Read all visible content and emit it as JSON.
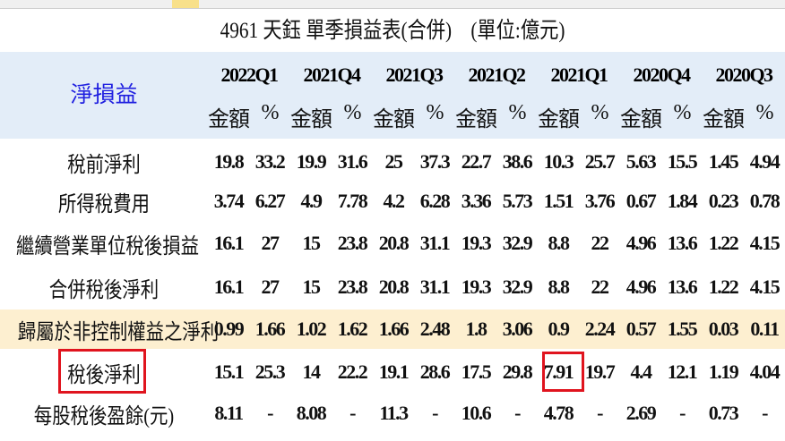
{
  "title": "4961 天鈺 單季損益表(合併)　(單位:億元)",
  "corner_label": "淨損益",
  "quarters": [
    "2022Q1",
    "2021Q4",
    "2021Q3",
    "2021Q2",
    "2021Q1",
    "2020Q4",
    "2020Q3"
  ],
  "sub_headers": [
    "金額",
    "%"
  ],
  "rows": [
    {
      "label": "稅前淨利",
      "values": [
        "19.8",
        "33.2",
        "19.9",
        "31.6",
        "25",
        "37.3",
        "22.7",
        "38.6",
        "10.3",
        "25.7",
        "5.63",
        "15.5",
        "1.45",
        "4.94"
      ]
    },
    {
      "label": "所得稅費用",
      "values": [
        "3.74",
        "6.27",
        "4.9",
        "7.78",
        "4.2",
        "6.28",
        "3.36",
        "5.73",
        "1.51",
        "3.76",
        "0.67",
        "1.84",
        "0.23",
        "0.78"
      ]
    },
    {
      "label": "繼續營業單位稅後損益",
      "values": [
        "16.1",
        "27",
        "15",
        "23.8",
        "20.8",
        "31.1",
        "19.3",
        "32.9",
        "8.8",
        "22",
        "4.96",
        "13.6",
        "1.22",
        "4.15"
      ]
    },
    {
      "label": "合併稅後淨利",
      "values": [
        "16.1",
        "27",
        "15",
        "23.8",
        "20.8",
        "31.1",
        "19.3",
        "32.9",
        "8.8",
        "22",
        "4.96",
        "13.6",
        "1.22",
        "4.15"
      ]
    },
    {
      "label": "歸屬於非控制權益之淨利",
      "values": [
        "0.99",
        "1.66",
        "1.02",
        "1.62",
        "1.66",
        "2.48",
        "1.8",
        "3.06",
        "0.9",
        "2.24",
        "0.57",
        "1.55",
        "0.03",
        "0.11"
      ]
    },
    {
      "label": "稅後淨利",
      "values": [
        "15.1",
        "25.3",
        "14",
        "22.2",
        "19.1",
        "28.6",
        "17.5",
        "29.8",
        "7.91",
        "19.7",
        "4.4",
        "12.1",
        "1.19",
        "4.04"
      ]
    },
    {
      "label": "每股稅後盈餘(元)",
      "values": [
        "8.11",
        "-",
        "8.08",
        "-",
        "11.3",
        "-",
        "10.6",
        "-",
        "4.78",
        "-",
        "2.69",
        "-",
        "0.73",
        "-"
      ]
    }
  ],
  "colors": {
    "header_band": "#e3edf8",
    "highlight_row": "#fdefd0",
    "corner_text": "#1f1fe0",
    "annotation_box": "#e0141e"
  }
}
